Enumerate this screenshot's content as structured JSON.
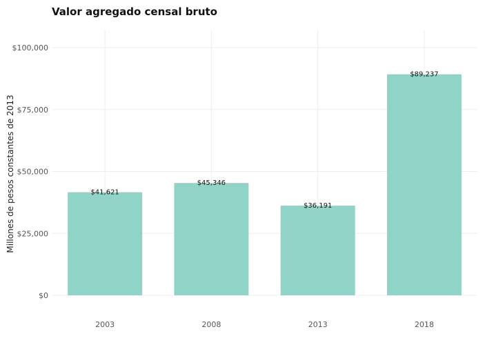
{
  "chart_data": {
    "type": "bar",
    "title": "Valor agregado censal bruto",
    "xlabel": "",
    "ylabel": "Millones de pesos constantes de 2013",
    "categories": [
      "2003",
      "2008",
      "2013",
      "2018"
    ],
    "values": [
      41621,
      45346,
      36191,
      89237
    ],
    "data_labels": [
      "$41,621",
      "$45,346",
      "$36,191",
      "$89,237"
    ],
    "ylim": [
      0,
      105000
    ],
    "y_ticks": [
      0,
      25000,
      50000,
      75000,
      100000
    ],
    "y_tick_labels": [
      "$0",
      "$25,000",
      "$50,000",
      "$75,000",
      "$100,000"
    ],
    "grid": true,
    "legend": "none",
    "bar_color": "#8fd4c7"
  }
}
